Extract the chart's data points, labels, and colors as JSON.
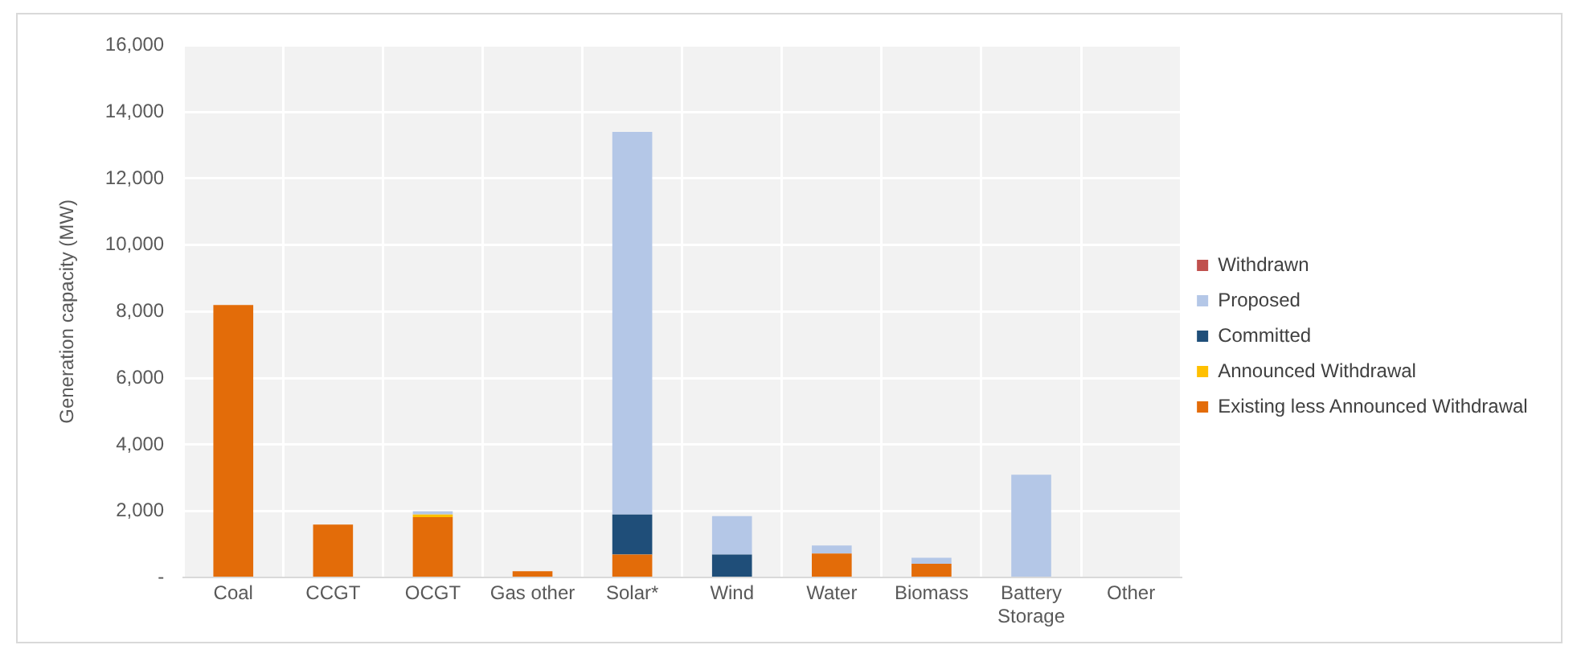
{
  "chart_data": {
    "type": "bar",
    "stacked": true,
    "ylabel": "Generation capacity (MW)",
    "categories": [
      "Coal",
      "CCGT",
      "OCGT",
      "Gas other",
      "Solar*",
      "Wind",
      "Water",
      "Biomass",
      "Battery Storage",
      "Other"
    ],
    "series": [
      {
        "name": "Existing less Announced Withdrawal",
        "color": "#e36c09",
        "values": [
          8200,
          1600,
          1820,
          200,
          700,
          0,
          730,
          420,
          0,
          0
        ]
      },
      {
        "name": "Announced Withdrawal",
        "color": "#ffc000",
        "values": [
          0,
          0,
          80,
          0,
          0,
          0,
          0,
          0,
          0,
          0
        ]
      },
      {
        "name": "Committed",
        "color": "#1f4e79",
        "values": [
          0,
          0,
          0,
          0,
          1200,
          700,
          0,
          0,
          0,
          0
        ]
      },
      {
        "name": "Proposed",
        "color": "#b4c7e7",
        "values": [
          0,
          0,
          100,
          0,
          11500,
          1150,
          240,
          180,
          3100,
          0
        ]
      },
      {
        "name": "Withdrawn",
        "color": "#c0504d",
        "values": [
          0,
          0,
          0,
          0,
          0,
          0,
          0,
          0,
          0,
          0
        ]
      }
    ],
    "ylim": [
      0,
      16000
    ],
    "yticks": [
      {
        "value": 0,
        "label": "-"
      },
      {
        "value": 2000,
        "label": "2,000"
      },
      {
        "value": 4000,
        "label": "4,000"
      },
      {
        "value": 6000,
        "label": "6,000"
      },
      {
        "value": 8000,
        "label": "8,000"
      },
      {
        "value": 10000,
        "label": "10,000"
      },
      {
        "value": 12000,
        "label": "12,000"
      },
      {
        "value": 14000,
        "label": "14,000"
      },
      {
        "value": 16000,
        "label": "16,000"
      }
    ],
    "grid": true,
    "legend": "right"
  }
}
